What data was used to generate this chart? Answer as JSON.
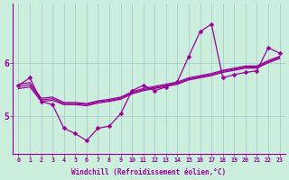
{
  "xlabel": "Windchill (Refroidissement éolien,°C)",
  "background_color": "#cceedd",
  "line_color": "#990099",
  "grid_color": "#aacccc",
  "x_values": [
    0,
    1,
    2,
    3,
    4,
    5,
    6,
    7,
    8,
    9,
    10,
    11,
    12,
    13,
    14,
    15,
    16,
    17,
    18,
    19,
    20,
    21,
    22,
    23
  ],
  "y_main": [
    5.58,
    5.72,
    5.28,
    5.22,
    4.78,
    4.68,
    4.55,
    4.78,
    4.82,
    5.05,
    5.48,
    5.58,
    5.48,
    5.55,
    5.65,
    6.12,
    6.58,
    6.72,
    5.72,
    5.78,
    5.82,
    5.85,
    6.28,
    6.18
  ],
  "y_trend1": [
    5.52,
    5.55,
    5.28,
    5.3,
    5.22,
    5.22,
    5.2,
    5.25,
    5.28,
    5.32,
    5.42,
    5.48,
    5.52,
    5.56,
    5.6,
    5.68,
    5.72,
    5.76,
    5.82,
    5.86,
    5.9,
    5.9,
    6.0,
    6.08
  ],
  "y_trend2": [
    5.56,
    5.59,
    5.31,
    5.33,
    5.24,
    5.24,
    5.22,
    5.27,
    5.3,
    5.34,
    5.44,
    5.5,
    5.54,
    5.58,
    5.62,
    5.7,
    5.74,
    5.78,
    5.84,
    5.88,
    5.92,
    5.92,
    6.02,
    6.1
  ],
  "y_trend3": [
    5.6,
    5.63,
    5.34,
    5.36,
    5.26,
    5.26,
    5.24,
    5.29,
    5.32,
    5.36,
    5.46,
    5.52,
    5.56,
    5.6,
    5.64,
    5.72,
    5.76,
    5.8,
    5.86,
    5.9,
    5.94,
    5.94,
    6.04,
    6.12
  ],
  "ylim": [
    4.3,
    7.1
  ],
  "yticks": [
    5.0,
    6.0
  ],
  "xlim": [
    -0.5,
    23.5
  ]
}
